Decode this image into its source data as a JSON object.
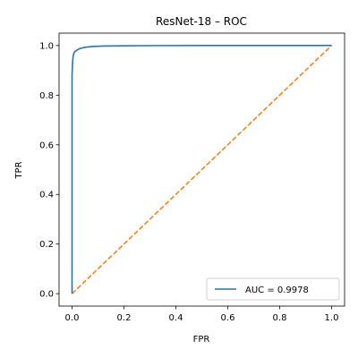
{
  "chart_data": {
    "type": "line",
    "title": "ResNet-18 – ROC",
    "xlabel": "FPR",
    "ylabel": "TPR",
    "xlim": [
      -0.05,
      1.05
    ],
    "ylim": [
      -0.05,
      1.05
    ],
    "xticks": [
      0.0,
      0.2,
      0.4,
      0.6,
      0.8,
      1.0
    ],
    "yticks": [
      0.0,
      0.2,
      0.4,
      0.6,
      0.8,
      1.0
    ],
    "xtick_labels": [
      "0.0",
      "0.2",
      "0.4",
      "0.6",
      "0.8",
      "1.0"
    ],
    "ytick_labels": [
      "0.0",
      "0.2",
      "0.4",
      "0.6",
      "0.8",
      "1.0"
    ],
    "grid": false,
    "legend_position": "lower-right",
    "series": [
      {
        "name": "AUC = 0.9978",
        "color": "#1f77b4",
        "style": "solid",
        "x": [
          0.0,
          0.0,
          0.002,
          0.004,
          0.006,
          0.01,
          0.02,
          0.03,
          0.05,
          0.08,
          0.12,
          0.2,
          0.3,
          0.5,
          0.7,
          1.0
        ],
        "y": [
          0.0,
          0.88,
          0.93,
          0.955,
          0.965,
          0.975,
          0.982,
          0.988,
          0.993,
          0.996,
          0.998,
          0.999,
          0.9995,
          1.0,
          1.0,
          1.0
        ]
      },
      {
        "name": "",
        "color": "#ff7f0e",
        "style": "dashed",
        "x": [
          0.0,
          1.0
        ],
        "y": [
          0.0,
          1.0
        ]
      }
    ]
  }
}
